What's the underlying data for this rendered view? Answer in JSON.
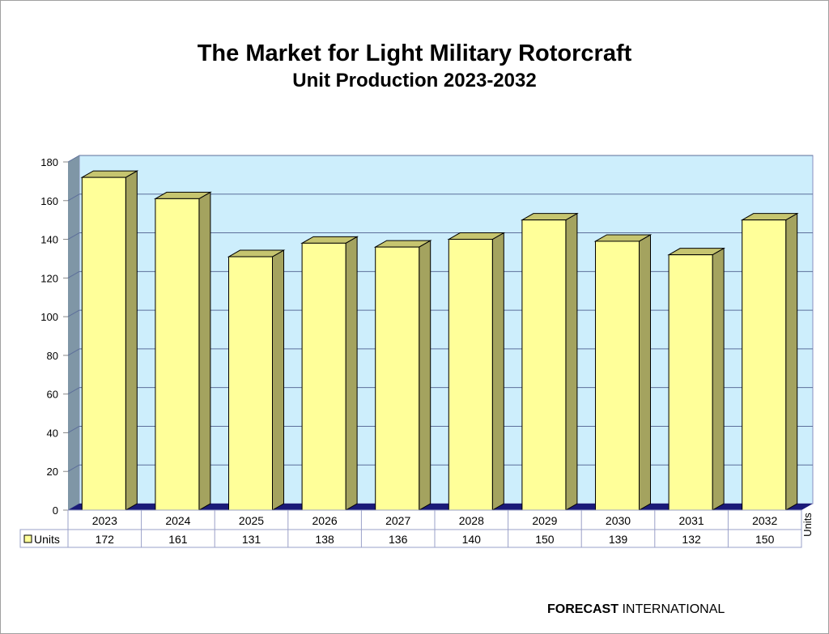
{
  "chart_data": {
    "type": "bar",
    "title": "The Market for Light Military Rotorcraft",
    "subtitle": "Unit Production 2023-2032",
    "categories": [
      "2023",
      "2024",
      "2025",
      "2026",
      "2027",
      "2028",
      "2029",
      "2030",
      "2031",
      "2032"
    ],
    "series": [
      {
        "name": "Units",
        "values": [
          172,
          161,
          131,
          138,
          136,
          140,
          150,
          139,
          132,
          150
        ]
      }
    ],
    "ylim": [
      0,
      180
    ],
    "yticks": [
      0,
      20,
      40,
      60,
      80,
      100,
      120,
      140,
      160,
      180
    ],
    "ylabel_right": "Units",
    "grid": true,
    "data_table": true,
    "colors": {
      "bar_front": "#ffff99",
      "bar_side": "#a4a35f",
      "bar_top": "#c6c56f",
      "wall": "#cdeefc",
      "side_wall": "#7f96a6",
      "floor": "#1a1a78",
      "grid": "#5d6f9a"
    }
  },
  "footer": {
    "bold": "FORECAST",
    "rest": " INTERNATIONAL"
  }
}
